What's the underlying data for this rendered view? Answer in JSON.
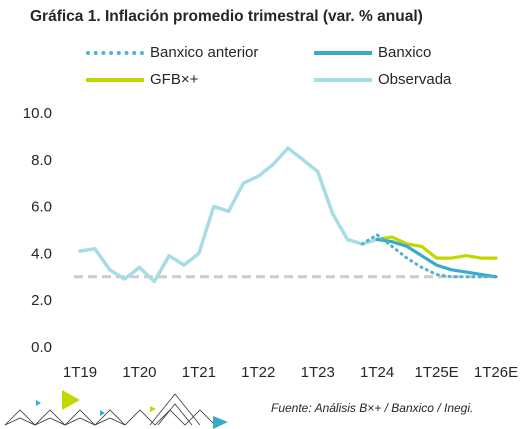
{
  "title": "Gráfica 1. Inflación promedio trimestral (var. % anual)",
  "legend": [
    {
      "label": "Banxico anterior",
      "color": "#4fb3cc",
      "style": "dotted"
    },
    {
      "label": "Banxico",
      "color": "#3aaacb",
      "style": "solid"
    },
    {
      "label": "GFB×+",
      "color": "#c4d600",
      "style": "solid"
    },
    {
      "label": "Observada",
      "color": "#a6dde5",
      "style": "solid"
    }
  ],
  "source": "Fuente: Análisis B×+ /  Banxico / Inegi.",
  "chart_data": {
    "type": "line",
    "title": "Gráfica 1. Inflación promedio trimestral (var. % anual)",
    "xlabel": "",
    "ylabel": "",
    "x_tick_labels": [
      "1T19",
      "1T20",
      "1T21",
      "1T22",
      "1T23",
      "1T24",
      "1T25E",
      "1T26E"
    ],
    "ylim": [
      0,
      10
    ],
    "y_ticks": [
      "0.0",
      "2.0",
      "4.0",
      "6.0",
      "8.0",
      "10.0"
    ],
    "grid": false,
    "legend_position": "top",
    "reference_line": {
      "y": 3.0,
      "color": "#cccccc",
      "style": "dashed"
    },
    "series": [
      {
        "name": "Observada",
        "color": "#a6dde5",
        "x": [
          "1T19",
          "2T19",
          "3T19",
          "4T19",
          "1T20",
          "2T20",
          "3T20",
          "4T20",
          "1T21",
          "2T21",
          "3T21",
          "4T21",
          "1T22",
          "2T22",
          "3T22",
          "4T22",
          "1T23",
          "2T23",
          "3T23",
          "4T23",
          "1T24"
        ],
        "values": [
          4.1,
          4.2,
          3.3,
          2.9,
          3.4,
          2.8,
          3.9,
          3.5,
          4.0,
          6.0,
          5.8,
          7.0,
          7.3,
          7.8,
          8.5,
          8.0,
          7.5,
          5.7,
          4.6,
          4.4,
          4.6
        ]
      },
      {
        "name": "Banxico anterior",
        "color": "#4fb3cc",
        "style": "dotted",
        "x": [
          "4T23",
          "1T24",
          "2T24",
          "3T24",
          "4T24",
          "1T25E",
          "2T25E",
          "3T25E",
          "4T25E",
          "1T26E"
        ],
        "values": [
          4.4,
          4.8,
          4.3,
          3.8,
          3.4,
          3.1,
          3.0,
          3.0,
          3.0,
          3.0
        ]
      },
      {
        "name": "Banxico",
        "color": "#3aaacb",
        "style": "solid",
        "x": [
          "1T24",
          "2T24",
          "3T24",
          "4T24",
          "1T25E",
          "2T25E",
          "3T25E",
          "4T25E",
          "1T26E"
        ],
        "values": [
          4.6,
          4.5,
          4.3,
          3.9,
          3.5,
          3.3,
          3.2,
          3.1,
          3.0
        ]
      },
      {
        "name": "GFB×+",
        "color": "#c4d600",
        "style": "solid",
        "x": [
          "1T24",
          "2T24",
          "3T24",
          "4T24",
          "1T25E",
          "2T25E",
          "3T25E",
          "4T25E",
          "1T26E"
        ],
        "values": [
          4.6,
          4.7,
          4.4,
          4.3,
          3.8,
          3.8,
          3.9,
          3.8,
          3.8
        ]
      }
    ]
  }
}
